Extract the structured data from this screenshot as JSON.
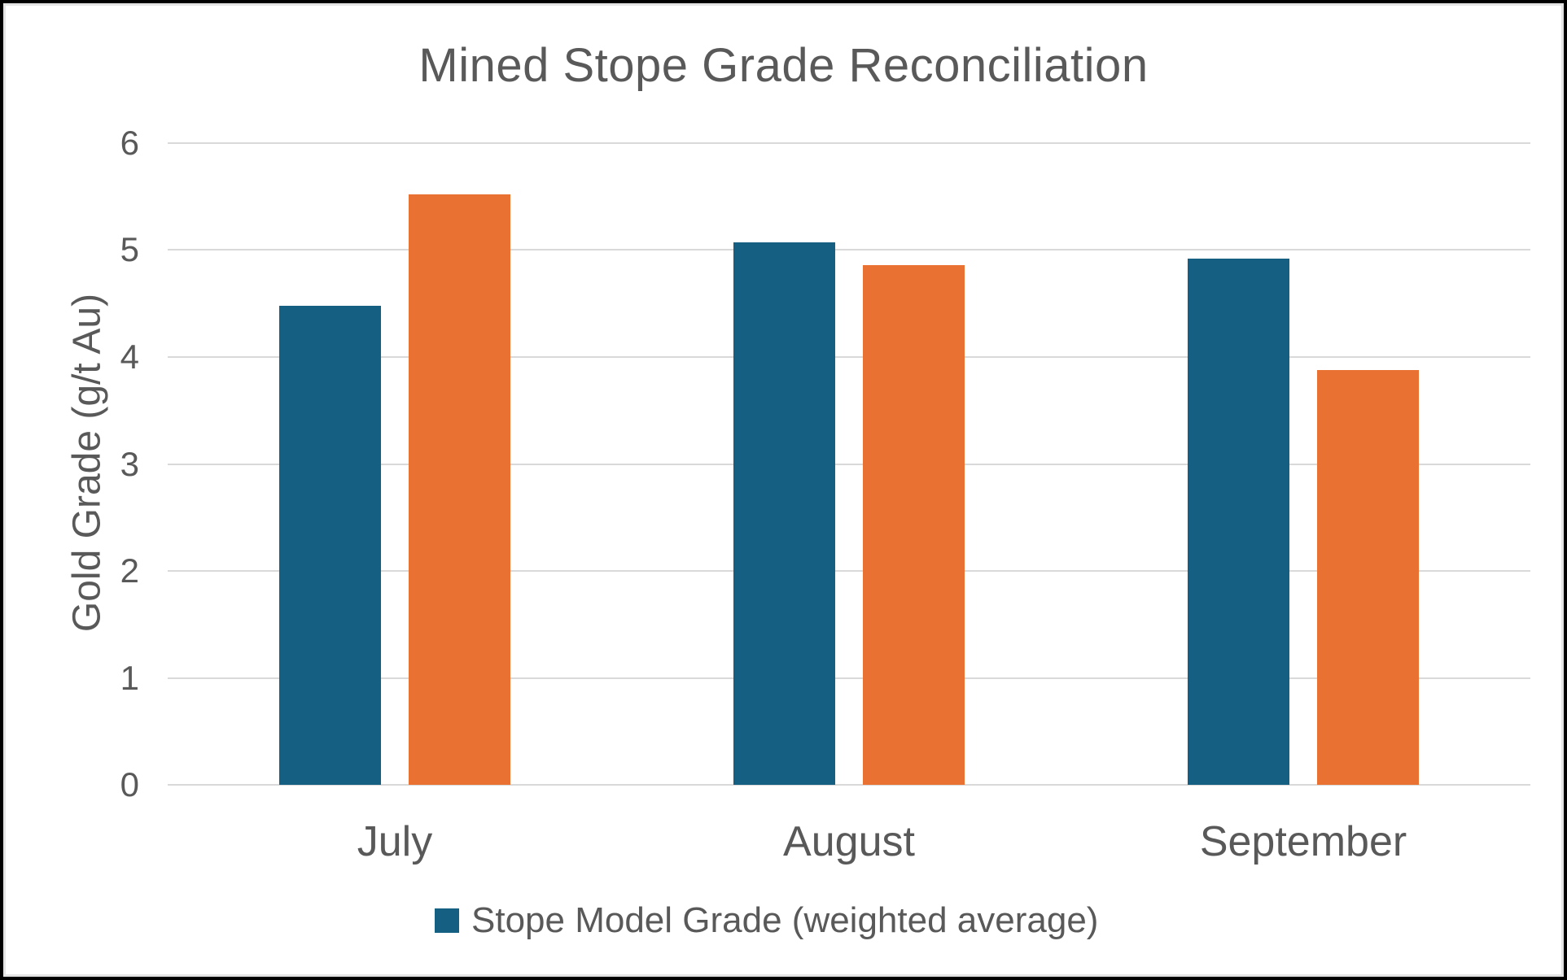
{
  "chart_data": {
    "type": "bar",
    "title": "Mined Stope Grade Reconciliation",
    "xlabel": "",
    "ylabel": "Gold Grade (g/t Au)",
    "categories": [
      "July",
      "August",
      "September"
    ],
    "series": [
      {
        "name": "Stope Model Grade (weighted average)",
        "color": "#156082",
        "values": [
          4.48,
          5.07,
          4.92
        ]
      },
      {
        "color": "#E97132",
        "values": [
          5.52,
          4.86,
          3.88
        ]
      }
    ],
    "ylim": [
      0,
      6
    ],
    "yticks": [
      0,
      1,
      2,
      3,
      4,
      5,
      6
    ],
    "grid": "horizontal",
    "legend": {
      "position": "bottom",
      "items": [
        {
          "label": "Stope Model Grade (weighted average)",
          "color": "#156082"
        }
      ]
    },
    "colors": {
      "text": "#595959",
      "gridline": "#d9d9d9",
      "plot_background": "#ffffff",
      "frame_border": "#000000"
    }
  }
}
